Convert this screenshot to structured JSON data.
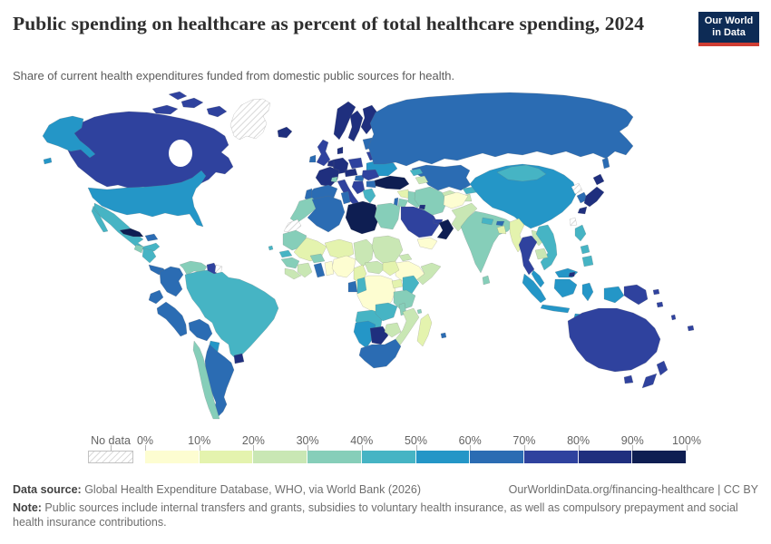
{
  "header": {
    "title": "Public spending on healthcare as percent of total healthcare spending, 2024",
    "subtitle": "Share of current health expenditures funded from domestic public sources for health.",
    "logo": {
      "line1": "Our World",
      "line2": "in Data",
      "bg": "#0d2b55",
      "accent": "#cf3d33"
    }
  },
  "legend": {
    "no_data_label": "No data",
    "tick_labels": [
      "0%",
      "10%",
      "20%",
      "30%",
      "40%",
      "50%",
      "60%",
      "70%",
      "80%",
      "90%",
      "100%"
    ]
  },
  "footer": {
    "datasource_label": "Data source:",
    "datasource_text": " Global Health Expenditure Database, WHO, via World Bank (2026)",
    "link_text": "OurWorldinData.org/financing-healthcare | CC BY",
    "note_label": "Note:",
    "note_text": " Public sources include internal transfers and grants, subsidies to voluntary health insurance, as well as compulsory prepayment and social health insurance contributions."
  },
  "chart_data": {
    "type": "choropleth",
    "title": "Public spending on healthcare as percent of total healthcare spending",
    "year": "2024",
    "unit": "share of current health expenditure funded from domestic public sources (%)",
    "legend_position": "bottom",
    "bin_edges_percent": [
      0,
      10,
      20,
      30,
      40,
      50,
      60,
      70,
      80,
      90,
      100
    ],
    "bin_colors": [
      "#fdfdd1",
      "#e4f3ae",
      "#c9e7b4",
      "#86ceb9",
      "#46b4c4",
      "#2496c7",
      "#2b6cb3",
      "#2f429e",
      "#1f2f7e",
      "#0e1e52"
    ],
    "no_data_color": "hatched",
    "countries": [
      {
        "id": "greenland",
        "name": "Greenland",
        "bin": null
      },
      {
        "id": "canada",
        "name": "Canada",
        "bin": 7
      },
      {
        "id": "usa",
        "name": "United States",
        "bin": 5
      },
      {
        "id": "mexico",
        "name": "Mexico",
        "bin": 4
      },
      {
        "id": "guatemala",
        "name": "Guatemala",
        "bin": 3
      },
      {
        "id": "honduras-nicaragua",
        "name": "Honduras & Nicaragua",
        "bin": 4
      },
      {
        "id": "costa-rica-panama",
        "name": "Costa Rica & Panama",
        "bin": 6
      },
      {
        "id": "cuba",
        "name": "Cuba",
        "bin": 9
      },
      {
        "id": "hispaniola",
        "name": "Dominican Republic",
        "bin": 6
      },
      {
        "id": "colombia",
        "name": "Colombia",
        "bin": 6
      },
      {
        "id": "venezuela",
        "name": "Venezuela",
        "bin": 3
      },
      {
        "id": "guyana",
        "name": "Guyana",
        "bin": 7
      },
      {
        "id": "suriname",
        "name": "Suriname",
        "bin": null
      },
      {
        "id": "ecuador",
        "name": "Ecuador",
        "bin": 6
      },
      {
        "id": "peru",
        "name": "Peru",
        "bin": 6
      },
      {
        "id": "brazil",
        "name": "Brazil",
        "bin": 4
      },
      {
        "id": "bolivia",
        "name": "Bolivia",
        "bin": 6
      },
      {
        "id": "paraguay",
        "name": "Paraguay",
        "bin": 5
      },
      {
        "id": "chile",
        "name": "Chile",
        "bin": 3
      },
      {
        "id": "argentina",
        "name": "Argentina",
        "bin": 6
      },
      {
        "id": "uruguay",
        "name": "Uruguay",
        "bin": 8
      },
      {
        "id": "iceland",
        "name": "Iceland",
        "bin": 8
      },
      {
        "id": "uk",
        "name": "United Kingdom",
        "bin": 7
      },
      {
        "id": "ireland",
        "name": "Ireland",
        "bin": 6
      },
      {
        "id": "norway",
        "name": "Norway",
        "bin": 8
      },
      {
        "id": "sweden",
        "name": "Sweden",
        "bin": 8
      },
      {
        "id": "finland",
        "name": "Finland",
        "bin": 8
      },
      {
        "id": "denmark",
        "name": "Denmark",
        "bin": 8
      },
      {
        "id": "baltics",
        "name": "Baltic states",
        "bin": 6
      },
      {
        "id": "poland",
        "name": "Poland",
        "bin": 7
      },
      {
        "id": "germany",
        "name": "Germany",
        "bin": 8
      },
      {
        "id": "benelux",
        "name": "Benelux",
        "bin": 8
      },
      {
        "id": "france",
        "name": "France",
        "bin": 8
      },
      {
        "id": "switzerland",
        "name": "Switzerland",
        "bin": 3
      },
      {
        "id": "czech-austria",
        "name": "Czechia & Austria",
        "bin": 8
      },
      {
        "id": "hungary",
        "name": "Hungary",
        "bin": 6
      },
      {
        "id": "italy",
        "name": "Italy",
        "bin": 7
      },
      {
        "id": "spain",
        "name": "Spain",
        "bin": 6
      },
      {
        "id": "portugal",
        "name": "Portugal",
        "bin": 6
      },
      {
        "id": "balkans",
        "name": "Western Balkans",
        "bin": 7
      },
      {
        "id": "romania",
        "name": "Romania",
        "bin": 7
      },
      {
        "id": "bulgaria",
        "name": "Bulgaria",
        "bin": 6
      },
      {
        "id": "greece",
        "name": "Greece",
        "bin": 4
      },
      {
        "id": "ukraine",
        "name": "Ukraine",
        "bin": 5
      },
      {
        "id": "belarus",
        "name": "Belarus",
        "bin": 7
      },
      {
        "id": "russia",
        "name": "Russia",
        "bin": 6
      },
      {
        "id": "kazakhstan",
        "name": "Kazakhstan",
        "bin": 6
      },
      {
        "id": "uzbekistan",
        "name": "Uzbekistan",
        "bin": 2
      },
      {
        "id": "turkmenistan",
        "name": "Turkmenistan",
        "bin": 2
      },
      {
        "id": "kyrgyzstan",
        "name": "Kyrgyzstan",
        "bin": 4
      },
      {
        "id": "tajikistan",
        "name": "Tajikistan",
        "bin": 2
      },
      {
        "id": "georgia",
        "name": "Georgia",
        "bin": 4
      },
      {
        "id": "azerbaijan",
        "name": "Azerbaijan",
        "bin": 2
      },
      {
        "id": "turkey",
        "name": "Turkey",
        "bin": 9
      },
      {
        "id": "syria",
        "name": "Syria",
        "bin": 1
      },
      {
        "id": "israel",
        "name": "Israel",
        "bin": 6
      },
      {
        "id": "jordan",
        "name": "Jordan",
        "bin": 3
      },
      {
        "id": "iraq",
        "name": "Iraq",
        "bin": 3
      },
      {
        "id": "iran",
        "name": "Iran",
        "bin": 3
      },
      {
        "id": "saudi-arabia",
        "name": "Saudi Arabia",
        "bin": 7
      },
      {
        "id": "yemen",
        "name": "Yemen",
        "bin": 0
      },
      {
        "id": "oman",
        "name": "Oman",
        "bin": 9
      },
      {
        "id": "uae",
        "name": "United Arab Emirates",
        "bin": 7
      },
      {
        "id": "kuwait",
        "name": "Kuwait",
        "bin": 8
      },
      {
        "id": "afghanistan",
        "name": "Afghanistan",
        "bin": 0
      },
      {
        "id": "pakistan",
        "name": "Pakistan",
        "bin": 2
      },
      {
        "id": "india",
        "name": "India",
        "bin": 3
      },
      {
        "id": "nepal",
        "name": "Nepal",
        "bin": 4
      },
      {
        "id": "bhutan",
        "name": "Bhutan",
        "bin": 6
      },
      {
        "id": "bangladesh",
        "name": "Bangladesh",
        "bin": 1
      },
      {
        "id": "sri-lanka",
        "name": "Sri Lanka",
        "bin": 3
      },
      {
        "id": "myanmar",
        "name": "Myanmar",
        "bin": 1
      },
      {
        "id": "china",
        "name": "China",
        "bin": 5
      },
      {
        "id": "mongolia",
        "name": "Mongolia",
        "bin": 4
      },
      {
        "id": "north-korea",
        "name": "North Korea",
        "bin": null
      },
      {
        "id": "south-korea",
        "name": "South Korea",
        "bin": 6
      },
      {
        "id": "japan",
        "name": "Japan",
        "bin": 8
      },
      {
        "id": "taiwan",
        "name": "Taiwan",
        "bin": null
      },
      {
        "id": "thailand",
        "name": "Thailand",
        "bin": 7
      },
      {
        "id": "laos",
        "name": "Laos",
        "bin": 2
      },
      {
        "id": "cambodia",
        "name": "Cambodia",
        "bin": 2
      },
      {
        "id": "vietnam",
        "name": "Vietnam",
        "bin": 4
      },
      {
        "id": "malaysia",
        "name": "Malaysia",
        "bin": 5
      },
      {
        "id": "brunei",
        "name": "Brunei",
        "bin": 8
      },
      {
        "id": "indonesia",
        "name": "Indonesia",
        "bin": 5
      },
      {
        "id": "philippines",
        "name": "Philippines",
        "bin": 4
      },
      {
        "id": "papua-new-guinea",
        "name": "Papua New Guinea",
        "bin": 7
      },
      {
        "id": "morocco",
        "name": "Morocco",
        "bin": 3
      },
      {
        "id": "western-sahara",
        "name": "Western Sahara",
        "bin": null
      },
      {
        "id": "algeria",
        "name": "Algeria",
        "bin": 6
      },
      {
        "id": "tunisia",
        "name": "Tunisia",
        "bin": 6
      },
      {
        "id": "libya",
        "name": "Libya",
        "bin": 9
      },
      {
        "id": "egypt",
        "name": "Egypt",
        "bin": 3
      },
      {
        "id": "mauritania",
        "name": "Mauritania",
        "bin": 3
      },
      {
        "id": "senegal",
        "name": "Senegal",
        "bin": 4
      },
      {
        "id": "mali",
        "name": "Mali",
        "bin": 1
      },
      {
        "id": "niger",
        "name": "Niger",
        "bin": 1
      },
      {
        "id": "chad",
        "name": "Chad",
        "bin": 2
      },
      {
        "id": "sudan",
        "name": "Sudan",
        "bin": 2
      },
      {
        "id": "eritrea",
        "name": "Eritrea",
        "bin": 2
      },
      {
        "id": "ethiopia",
        "name": "Ethiopia",
        "bin": 0
      },
      {
        "id": "somalia",
        "name": "Somalia",
        "bin": 2
      },
      {
        "id": "guinea",
        "name": "Guinea",
        "bin": 3
      },
      {
        "id": "sierra-leone-liberia",
        "name": "Sierra Leone & Liberia",
        "bin": 2
      },
      {
        "id": "ivory-coast",
        "name": "Cote d'Ivoire",
        "bin": 2
      },
      {
        "id": "burkina-faso",
        "name": "Burkina Faso",
        "bin": 3
      },
      {
        "id": "ghana",
        "name": "Ghana",
        "bin": 6
      },
      {
        "id": "togo-benin",
        "name": "Togo & Benin",
        "bin": 0
      },
      {
        "id": "nigeria",
        "name": "Nigeria",
        "bin": 0
      },
      {
        "id": "cameroon",
        "name": "Cameroon",
        "bin": 1
      },
      {
        "id": "central-african-republic",
        "name": "Central African Republic",
        "bin": 2
      },
      {
        "id": "south-sudan",
        "name": "South Sudan",
        "bin": 1
      },
      {
        "id": "drc",
        "name": "Democratic Republic of Congo",
        "bin": 0
      },
      {
        "id": "gabon",
        "name": "Gabon",
        "bin": 6
      },
      {
        "id": "congo",
        "name": "Congo",
        "bin": 4
      },
      {
        "id": "uganda",
        "name": "Uganda",
        "bin": 1
      },
      {
        "id": "kenya",
        "name": "Kenya",
        "bin": 4
      },
      {
        "id": "tanzania",
        "name": "Tanzania",
        "bin": 3
      },
      {
        "id": "angola",
        "name": "Angola",
        "bin": 4
      },
      {
        "id": "zambia",
        "name": "Zambia",
        "bin": 4
      },
      {
        "id": "malawi",
        "name": "Malawi",
        "bin": 3
      },
      {
        "id": "mozambique",
        "name": "Mozambique",
        "bin": 2
      },
      {
        "id": "zimbabwe",
        "name": "Zimbabwe",
        "bin": 2
      },
      {
        "id": "madagascar",
        "name": "Madagascar",
        "bin": 1
      },
      {
        "id": "namibia",
        "name": "Namibia",
        "bin": 5
      },
      {
        "id": "botswana",
        "name": "Botswana",
        "bin": 8
      },
      {
        "id": "south-africa",
        "name": "South Africa",
        "bin": 6
      },
      {
        "id": "mauritius",
        "name": "Mauritius",
        "bin": 6
      },
      {
        "id": "comoros",
        "name": "Comoros",
        "bin": 3
      },
      {
        "id": "cape-verde",
        "name": "Cape Verde",
        "bin": 4
      },
      {
        "id": "australia",
        "name": "Australia",
        "bin": 7
      },
      {
        "id": "new-zealand",
        "name": "New Zealand",
        "bin": 7
      },
      {
        "id": "fiji",
        "name": "Fiji",
        "bin": 7
      },
      {
        "id": "solomon-islands",
        "name": "Solomon Islands",
        "bin": 7
      },
      {
        "id": "vanuatu",
        "name": "Vanuatu",
        "bin": 7
      }
    ]
  }
}
